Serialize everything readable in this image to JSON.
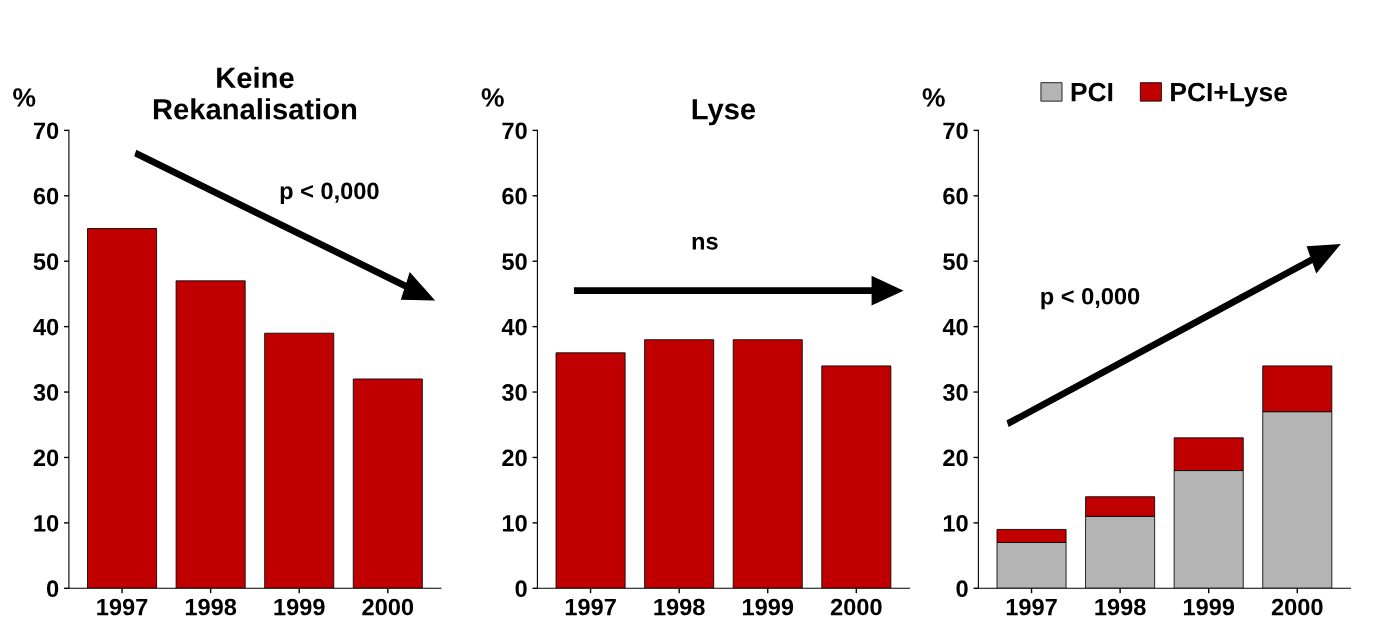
{
  "chart_data": [
    {
      "type": "bar",
      "title": "Keine\nRekanalisation",
      "ylabel": "%",
      "categories": [
        "1997",
        "1998",
        "1999",
        "2000"
      ],
      "values": [
        55,
        47,
        39,
        32
      ],
      "color": "#c00000",
      "ylim": [
        0,
        70
      ],
      "yticks": [
        0,
        10,
        20,
        30,
        40,
        50,
        60,
        70
      ],
      "grid": false,
      "legend": false,
      "annotations": [
        "p < 0,000"
      ]
    },
    {
      "type": "bar",
      "title": "Lyse",
      "ylabel": "%",
      "categories": [
        "1997",
        "1998",
        "1999",
        "2000"
      ],
      "values": [
        36,
        38,
        38,
        34
      ],
      "color": "#c00000",
      "ylim": [
        0,
        70
      ],
      "yticks": [
        0,
        10,
        20,
        30,
        40,
        50,
        60,
        70
      ],
      "grid": false,
      "legend": false,
      "annotations": [
        "ns"
      ]
    },
    {
      "type": "bar",
      "ylabel": "%",
      "categories": [
        "1997",
        "1998",
        "1999",
        "2000"
      ],
      "stacked": true,
      "series": [
        {
          "name": "PCI",
          "color": "#b4b4b4",
          "values": [
            7,
            11,
            18,
            27
          ]
        },
        {
          "name": "PCI+Lyse",
          "color": "#c00000",
          "values": [
            2,
            3,
            5,
            7
          ]
        }
      ],
      "ylim": [
        0,
        70
      ],
      "yticks": [
        0,
        10,
        20,
        30,
        40,
        50,
        60,
        70
      ],
      "grid": false,
      "legend": "top",
      "annotations": [
        "p < 0,000"
      ]
    }
  ]
}
